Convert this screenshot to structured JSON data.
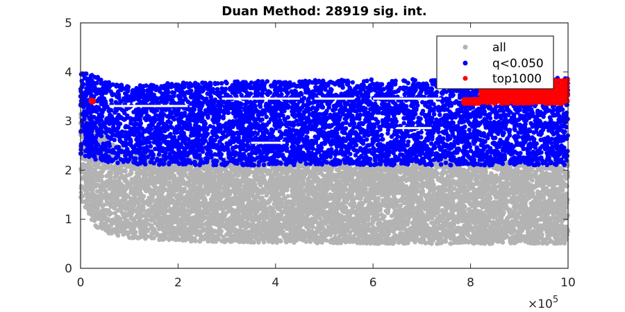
{
  "chart_data": {
    "type": "scatter",
    "title": "Duan Method: 28919 sig. int.",
    "xlabel": "",
    "ylabel": "",
    "x_exponent_label": "×10",
    "x_exponent_power": "5",
    "x_ticks": [
      0,
      2,
      4,
      6,
      8,
      10
    ],
    "y_ticks": [
      0,
      1,
      2,
      3,
      4,
      5
    ],
    "xlim": [
      0,
      10
    ],
    "ylim": [
      0,
      5
    ],
    "x_scale_multiplier": 100000,
    "grid": false,
    "legend_position": "top-right",
    "series": [
      {
        "name": "all",
        "color": "#b3b3b3",
        "description_range": {
          "x": [
            0,
            10
          ],
          "y": [
            0.45,
            2.25
          ]
        },
        "envelope": [
          [
            0,
            1.4,
            3.6
          ],
          [
            0.3,
            0.85,
            3.0
          ],
          [
            0.6,
            0.7,
            2.6
          ],
          [
            1,
            0.62,
            2.4
          ],
          [
            2,
            0.55,
            2.25
          ],
          [
            4,
            0.52,
            2.2
          ],
          [
            6,
            0.5,
            2.2
          ],
          [
            8,
            0.5,
            2.2
          ],
          [
            10,
            0.5,
            2.2
          ]
        ]
      },
      {
        "name": "q<0.050",
        "color": "#0000ff",
        "description_range": {
          "x": [
            0,
            10
          ],
          "y": [
            2.1,
            4.0
          ]
        },
        "envelope": [
          [
            0,
            2.3,
            4.0
          ],
          [
            0.3,
            2.2,
            3.95
          ],
          [
            0.6,
            2.15,
            3.8
          ],
          [
            1,
            2.12,
            3.72
          ],
          [
            2,
            2.1,
            3.78
          ],
          [
            4,
            2.1,
            3.82
          ],
          [
            6,
            2.1,
            3.85
          ],
          [
            8,
            2.1,
            3.85
          ],
          [
            10,
            2.1,
            3.88
          ]
        ]
      },
      {
        "name": "top1000",
        "color": "#ff0000",
        "points": [
          [
            0.22,
            3.42
          ],
          [
            0.24,
            3.39
          ],
          [
            0.26,
            3.41
          ]
        ],
        "band": {
          "x": [
            7.85,
            10
          ],
          "y": [
            3.35,
            3.85
          ]
        }
      }
    ]
  },
  "legend": {
    "items": [
      {
        "label": "all",
        "color": "#b3b3b3"
      },
      {
        "label": "q<0.050",
        "color": "#0000ff"
      },
      {
        "label": "top1000",
        "color": "#ff0000"
      }
    ]
  }
}
